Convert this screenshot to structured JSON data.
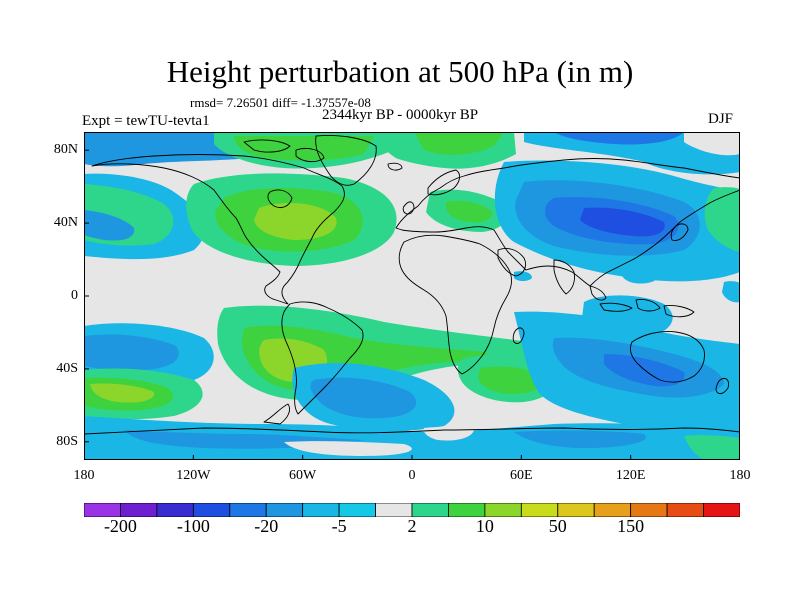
{
  "title": "Height perturbation at 500 hPa (in m)",
  "stats": "rmsd= 7.26501 diff= -1.37557e-08",
  "period": "2344kyr BP - 0000kyr BP",
  "experiment": "Expt = tewTU-tevta1",
  "season": "DJF",
  "map": {
    "projection": "cylindrical-equidistant",
    "lon_range": [
      -180,
      180
    ],
    "lat_range": [
      -90,
      90
    ],
    "field": "500 hPa geopotential height perturbation",
    "units": "m",
    "coastlines": true
  },
  "lat_ticks": [
    {
      "label": "80N",
      "value": 80
    },
    {
      "label": "40N",
      "value": 40
    },
    {
      "label": "0",
      "value": 0
    },
    {
      "label": "40S",
      "value": -40
    },
    {
      "label": "80S",
      "value": -80
    }
  ],
  "lon_ticks": [
    {
      "label": "180",
      "value": -180
    },
    {
      "label": "120W",
      "value": -120
    },
    {
      "label": "60W",
      "value": -60
    },
    {
      "label": "0",
      "value": 0
    },
    {
      "label": "60E",
      "value": 60
    },
    {
      "label": "120E",
      "value": 120
    },
    {
      "label": "180",
      "value": 180
    }
  ],
  "colorbar": {
    "colors": [
      "#9a32e6",
      "#6e1fd0",
      "#3a2dd0",
      "#1f4fe0",
      "#1f77e6",
      "#1f96e0",
      "#19b6e6",
      "#14c8e6",
      "#e6e6e6",
      "#2ed68c",
      "#3fd23f",
      "#8cd62b",
      "#c8dc1c",
      "#dcc81c",
      "#e6a01c",
      "#e67814",
      "#e64c14",
      "#e61414"
    ],
    "labels": [
      {
        "text": "-200",
        "boundary": 1
      },
      {
        "text": "-100",
        "boundary": 3
      },
      {
        "text": "-20",
        "boundary": 5
      },
      {
        "text": "-5",
        "boundary": 7
      },
      {
        "text": "2",
        "boundary": 9
      },
      {
        "text": "10",
        "boundary": 11
      },
      {
        "text": "50",
        "boundary": 13
      },
      {
        "text": "150",
        "boundary": 15
      }
    ]
  }
}
